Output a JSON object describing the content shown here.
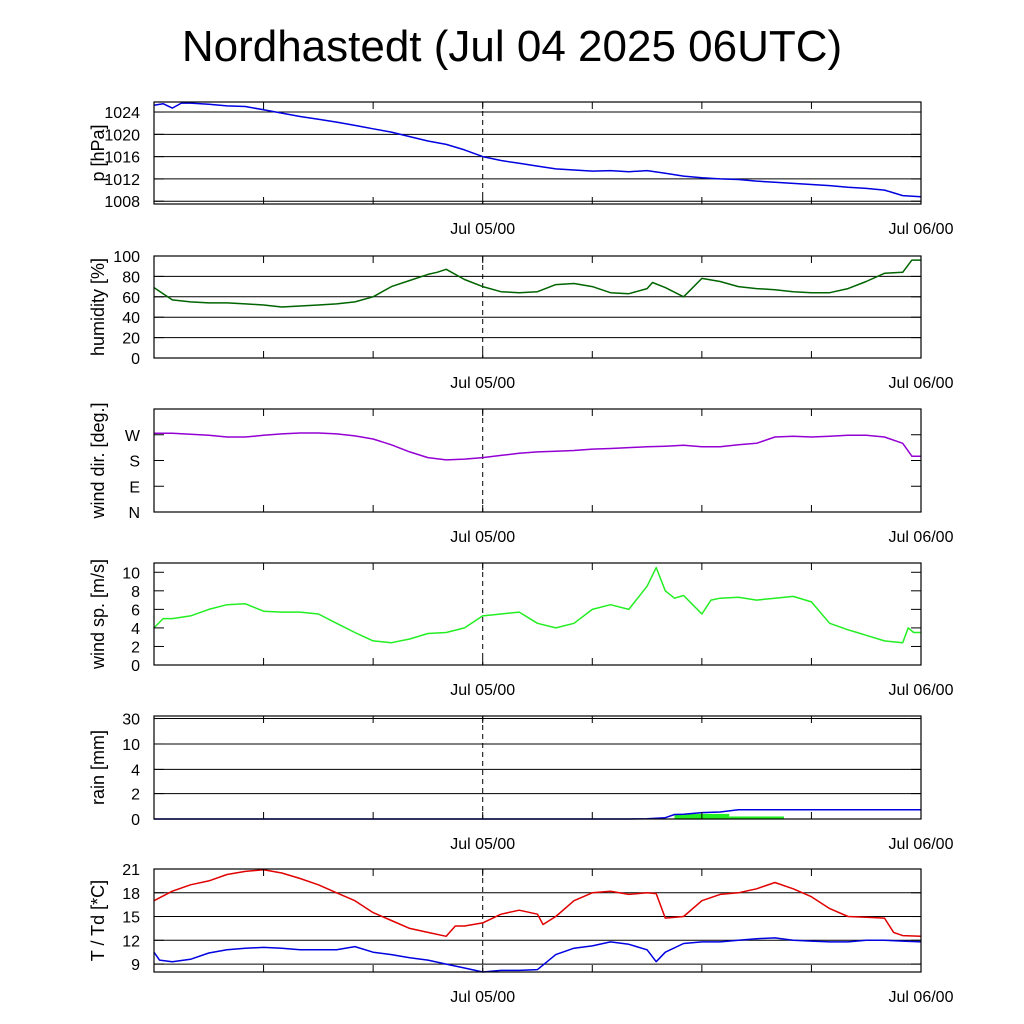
{
  "title": "Nordhastedt (Jul 04 2025 06UTC)",
  "colors": {
    "pressure": "#0000e0",
    "humidity": "#006400",
    "wind_dir": "#9400d3",
    "wind_speed": "#22ee22",
    "rain_accum": "#0000e0",
    "rain_bar": "#22ee22",
    "temperature": "#e00000",
    "dewpoint": "#0000e0"
  },
  "chart_data": [
    {
      "id": "pressure",
      "type": "line",
      "ylabel": "p [hPa]",
      "xlim": [
        0,
        42
      ],
      "x_ticks": [
        {
          "x": 18,
          "label": "Jul 05/00"
        },
        {
          "x": 42,
          "label": "Jul 06/00"
        }
      ],
      "ylim": [
        1007.5,
        1025.8
      ],
      "yticks": [
        1008,
        1012,
        1016,
        1020,
        1024
      ],
      "grid_y": [
        1008,
        1012,
        1016,
        1020,
        1024
      ],
      "series": [
        {
          "color_key": "pressure",
          "x": [
            0,
            0.5,
            1,
            1.5,
            2,
            3,
            4,
            5,
            6,
            7,
            8,
            9,
            10,
            11,
            12,
            13,
            14,
            15,
            16,
            17,
            18,
            19,
            20,
            21,
            22,
            23,
            24,
            25,
            26,
            27,
            28,
            29,
            30,
            31,
            32,
            33,
            34,
            35,
            36,
            37,
            38,
            39,
            40,
            41,
            42
          ],
          "y": [
            1025.2,
            1025.5,
            1024.7,
            1025.6,
            1025.6,
            1025.4,
            1025.1,
            1025.0,
            1024.4,
            1023.8,
            1023.2,
            1022.7,
            1022.2,
            1021.6,
            1021.0,
            1020.4,
            1019.6,
            1018.8,
            1018.2,
            1017.2,
            1016.0,
            1015.3,
            1014.8,
            1014.3,
            1013.8,
            1013.6,
            1013.4,
            1013.5,
            1013.3,
            1013.5,
            1013.0,
            1012.5,
            1012.2,
            1012.0,
            1011.9,
            1011.6,
            1011.4,
            1011.2,
            1011.0,
            1010.8,
            1010.5,
            1010.3,
            1010.0,
            1009.0,
            1008.8
          ]
        }
      ]
    },
    {
      "id": "humidity",
      "type": "line",
      "ylabel": "humidity [%]",
      "xlim": [
        0,
        42
      ],
      "x_ticks": [
        {
          "x": 18,
          "label": "Jul 05/00"
        },
        {
          "x": 42,
          "label": "Jul 06/00"
        }
      ],
      "ylim": [
        0,
        100
      ],
      "yticks": [
        0,
        20,
        40,
        60,
        80,
        100
      ],
      "grid_y": [
        0,
        20,
        40,
        60,
        80,
        100
      ],
      "series": [
        {
          "color_key": "humidity",
          "x": [
            0,
            1,
            2,
            3,
            4,
            5,
            6,
            7,
            8,
            9,
            10,
            11,
            12,
            13,
            14,
            15,
            15.5,
            16,
            17,
            18,
            19,
            20,
            21,
            22,
            23,
            24,
            25,
            26,
            27,
            27.3,
            28,
            29,
            30,
            31,
            32,
            33,
            34,
            35,
            36,
            37,
            38,
            39,
            40,
            41,
            41.5,
            42
          ],
          "y": [
            69,
            57,
            55,
            54,
            54,
            53,
            52,
            50,
            51,
            52,
            53,
            55,
            60,
            70,
            76,
            82,
            84,
            87,
            77,
            70,
            65,
            64,
            65,
            72,
            73,
            70,
            64,
            63,
            68,
            74,
            69,
            60,
            78,
            75,
            70,
            68,
            67,
            65,
            64,
            64,
            68,
            75,
            83,
            84,
            96,
            96
          ]
        }
      ]
    },
    {
      "id": "wind_direction",
      "type": "line",
      "ylabel": "wind dir. [deg.]",
      "xlim": [
        0,
        42
      ],
      "x_ticks": [
        {
          "x": 18,
          "label": "Jul 05/00"
        },
        {
          "x": 42,
          "label": "Jul 06/00"
        }
      ],
      "ylim": [
        0,
        360
      ],
      "yticks": [
        {
          "v": 0,
          "label": "N"
        },
        {
          "v": 90,
          "label": "E"
        },
        {
          "v": 180,
          "label": "S"
        },
        {
          "v": 270,
          "label": "W"
        }
      ],
      "grid_y": [],
      "series": [
        {
          "color_key": "wind_dir",
          "x": [
            0,
            1,
            2,
            3,
            4,
            5,
            6,
            7,
            8,
            9,
            10,
            11,
            12,
            13,
            14,
            15,
            16,
            17,
            18,
            19,
            20,
            21,
            22,
            23,
            24,
            25,
            26,
            27,
            28,
            29,
            30,
            31,
            32,
            33,
            34,
            35,
            36,
            37,
            38,
            39,
            40,
            41,
            41.5,
            42
          ],
          "y": [
            275,
            275,
            272,
            268,
            262,
            262,
            268,
            273,
            276,
            276,
            273,
            266,
            255,
            235,
            210,
            190,
            182,
            185,
            190,
            198,
            205,
            210,
            212,
            215,
            220,
            222,
            225,
            228,
            230,
            233,
            228,
            228,
            235,
            240,
            262,
            265,
            262,
            265,
            268,
            268,
            262,
            240,
            195,
            195
          ]
        }
      ]
    },
    {
      "id": "wind_speed",
      "type": "line",
      "ylabel": "wind sp. [m/s]",
      "xlim": [
        0,
        42
      ],
      "x_ticks": [
        {
          "x": 18,
          "label": "Jul 05/00"
        },
        {
          "x": 42,
          "label": "Jul 06/00"
        }
      ],
      "ylim": [
        0,
        11
      ],
      "yticks": [
        0,
        2,
        4,
        6,
        8,
        10
      ],
      "grid_y": [],
      "series": [
        {
          "color_key": "wind_speed",
          "x": [
            0,
            0.5,
            1,
            2,
            3,
            4,
            5,
            6,
            7,
            8,
            9,
            10,
            11,
            12,
            13,
            14,
            15,
            16,
            17,
            18,
            19,
            20,
            21,
            22,
            23,
            24,
            25,
            26,
            27,
            27.5,
            28,
            28.5,
            29,
            29.5,
            30,
            30.5,
            31,
            32,
            33,
            34,
            35,
            36,
            37,
            38,
            38.5,
            39,
            40,
            41,
            41.3,
            41.6,
            42
          ],
          "y": [
            4.0,
            5.0,
            5.0,
            5.3,
            6.0,
            6.5,
            6.6,
            5.8,
            5.7,
            5.7,
            5.5,
            4.5,
            3.5,
            2.6,
            2.4,
            2.8,
            3.4,
            3.5,
            4.0,
            5.3,
            5.5,
            5.7,
            4.5,
            4.0,
            4.5,
            6.0,
            6.5,
            6.0,
            8.5,
            10.5,
            8.0,
            7.2,
            7.5,
            6.5,
            5.5,
            7.0,
            7.2,
            7.3,
            7.0,
            7.2,
            7.4,
            6.8,
            4.5,
            3.8,
            3.5,
            3.2,
            2.6,
            2.4,
            4.0,
            3.5,
            3.5
          ]
        }
      ]
    },
    {
      "id": "rain",
      "type": "bar",
      "ylabel": "rain [mm]",
      "xlim": [
        0,
        42
      ],
      "x_ticks": [
        {
          "x": 18,
          "label": "Jul 05/00"
        },
        {
          "x": 42,
          "label": "Jul 06/00"
        }
      ],
      "scale": "custom-sqrt",
      "yticks": [
        0,
        2,
        4,
        10,
        30
      ],
      "ylim": [
        0,
        30
      ],
      "grid_y": [
        0,
        2,
        4,
        10,
        30
      ],
      "bars": [
        {
          "x0": 28.5,
          "x1": 31.5,
          "value": 0.4
        },
        {
          "x0": 31.5,
          "x1": 34.5,
          "value": 0.2
        }
      ],
      "series": [
        {
          "color_key": "rain_accum",
          "x": [
            0,
            26,
            27,
            28,
            28.5,
            29,
            30,
            31,
            32,
            33,
            34,
            35,
            36,
            37,
            38,
            39,
            40,
            41,
            42
          ],
          "y": [
            0,
            0,
            0.02,
            0.1,
            0.35,
            0.38,
            0.5,
            0.55,
            0.72,
            0.72,
            0.72,
            0.72,
            0.72,
            0.72,
            0.72,
            0.72,
            0.72,
            0.72,
            0.72
          ]
        }
      ]
    },
    {
      "id": "temperature",
      "type": "line",
      "ylabel": "T / Td [*C]",
      "xlim": [
        0,
        42
      ],
      "x_ticks": [
        {
          "x": 18,
          "label": "Jul 05/00"
        },
        {
          "x": 42,
          "label": "Jul 06/00"
        }
      ],
      "ylim": [
        8,
        21
      ],
      "yticks": [
        9,
        12,
        15,
        18,
        21
      ],
      "grid_y": [
        9,
        12,
        15,
        18,
        21
      ],
      "series": [
        {
          "name": "T",
          "color_key": "temperature",
          "x": [
            0,
            1,
            2,
            3,
            4,
            5,
            6,
            7,
            8,
            9,
            10,
            11,
            12,
            13,
            14,
            15,
            16,
            16.5,
            17,
            18,
            19,
            20,
            21,
            21.3,
            22,
            23,
            24,
            25,
            26,
            27,
            27.5,
            28,
            29,
            30,
            31,
            32,
            33,
            34,
            35,
            36,
            37,
            38,
            39,
            40,
            40.5,
            41,
            42
          ],
          "y": [
            17.0,
            18.2,
            19.0,
            19.5,
            20.3,
            20.7,
            20.9,
            20.5,
            19.8,
            19.0,
            18.0,
            17.0,
            15.5,
            14.5,
            13.5,
            13.0,
            12.5,
            13.8,
            13.8,
            14.2,
            15.3,
            15.8,
            15.3,
            14.0,
            15.0,
            17.0,
            18.0,
            18.2,
            17.8,
            18.0,
            17.9,
            14.8,
            15.0,
            17.0,
            17.8,
            18.0,
            18.5,
            19.3,
            18.5,
            17.5,
            16.0,
            15.0,
            14.9,
            14.8,
            13.0,
            12.6,
            12.5
          ]
        },
        {
          "name": "Td",
          "color_key": "dewpoint",
          "x": [
            0,
            0.3,
            1,
            2,
            3,
            4,
            5,
            6,
            7,
            8,
            9,
            10,
            11,
            12,
            13,
            14,
            15,
            16,
            17,
            18,
            19,
            20,
            21,
            22,
            23,
            24,
            25,
            26,
            27,
            27.5,
            28,
            29,
            30,
            31,
            32,
            33,
            34,
            35,
            36,
            37,
            38,
            39,
            40,
            41,
            42
          ],
          "y": [
            10.5,
            9.5,
            9.3,
            9.6,
            10.4,
            10.8,
            11.0,
            11.1,
            11.0,
            10.8,
            10.8,
            10.8,
            11.2,
            10.5,
            10.2,
            9.8,
            9.5,
            9.0,
            8.5,
            8.0,
            8.2,
            8.2,
            8.3,
            10.2,
            11.0,
            11.3,
            11.8,
            11.5,
            10.8,
            9.3,
            10.5,
            11.6,
            11.8,
            11.8,
            12.0,
            12.2,
            12.3,
            12.0,
            11.9,
            11.8,
            11.8,
            12.0,
            12.0,
            11.9,
            11.8
          ]
        }
      ]
    }
  ]
}
